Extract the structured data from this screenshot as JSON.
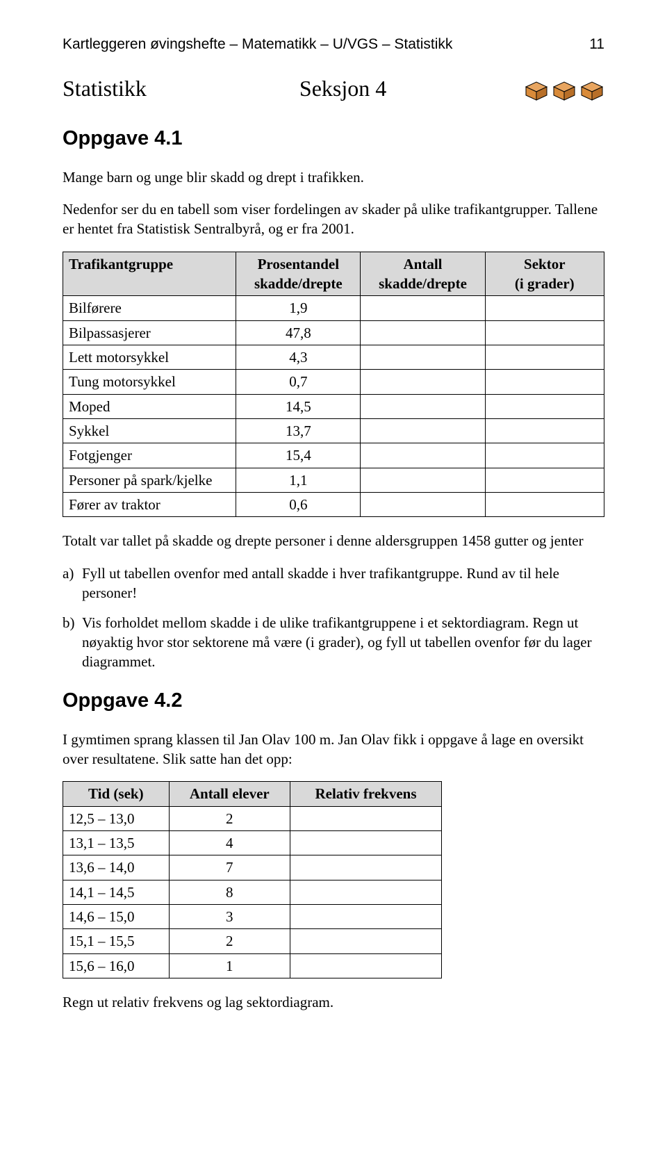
{
  "header": {
    "left": "Kartleggeren øvingshefte – Matematikk – U/VGS – Statistikk",
    "page": "11"
  },
  "section": {
    "title": "Statistikk",
    "label": "Seksjon 4"
  },
  "cube": {
    "fill": "#d98b3a",
    "stroke": "#000000",
    "top_fill": "#e8a560",
    "side_fill": "#b86f28",
    "count": 3
  },
  "oppgave1": {
    "heading": "Oppgave 4.1",
    "intro1": "Mange barn og unge blir skadd og drept i trafikken.",
    "intro2": "Nedenfor ser du en tabell som viser fordelingen av skader på ulike trafikantgrupper. Tallene er hentet fra Statistisk Sentralbyrå, og er fra 2001.",
    "table": {
      "headers": {
        "c0": "Trafikantgruppe",
        "c1_l1": "Prosentandel",
        "c1_l2": "skadde/drepte",
        "c2_l1": "Antall",
        "c2_l2": "skadde/drepte",
        "c3_l1": "Sektor",
        "c3_l2": "(i grader)"
      },
      "rows": [
        {
          "name": "Bilførere",
          "pct": "1,9"
        },
        {
          "name": "Bilpassasjerer",
          "pct": "47,8"
        },
        {
          "name": "Lett motorsykkel",
          "pct": "4,3"
        },
        {
          "name": "Tung motorsykkel",
          "pct": "0,7"
        },
        {
          "name": "Moped",
          "pct": "14,5"
        },
        {
          "name": "Sykkel",
          "pct": "13,7"
        },
        {
          "name": "Fotgjenger",
          "pct": "15,4"
        },
        {
          "name": "Personer på spark/kjelke",
          "pct": "1,1"
        },
        {
          "name": "Fører av traktor",
          "pct": "0,6"
        }
      ]
    },
    "after_table": "Totalt var tallet på skadde og drepte personer i denne aldersgruppen 1458 gutter og jenter",
    "qa_label": "a)",
    "qa": "Fyll ut tabellen ovenfor med antall skadde i hver trafikantgruppe. Rund av til hele personer!",
    "qb_label": "b)",
    "qb": "Vis forholdet mellom skadde i de ulike trafikantgruppene i et sektordiagram. Regn ut nøyaktig hvor stor sektorene må være (i grader), og fyll ut tabellen ovenfor før du lager diagrammet."
  },
  "oppgave2": {
    "heading": "Oppgave 4.2",
    "intro": "I gymtimen sprang klassen til Jan Olav 100 m. Jan Olav fikk i oppgave å lage en oversikt over resultatene. Slik satte han det opp:",
    "table": {
      "headers": {
        "c0": "Tid (sek)",
        "c1": "Antall elever",
        "c2": "Relativ frekvens"
      },
      "rows": [
        {
          "tid": "12,5 – 13,0",
          "ant": "2"
        },
        {
          "tid": "13,1 – 13,5",
          "ant": "4"
        },
        {
          "tid": "13,6 – 14,0",
          "ant": "7"
        },
        {
          "tid": "14,1 – 14,5",
          "ant": "8"
        },
        {
          "tid": "14,6 – 15,0",
          "ant": "3"
        },
        {
          "tid": "15,1 – 15,5",
          "ant": "2"
        },
        {
          "tid": "15,6 – 16,0",
          "ant": "1"
        }
      ]
    },
    "after": "Regn ut relativ frekvens og lag sektordiagram."
  }
}
